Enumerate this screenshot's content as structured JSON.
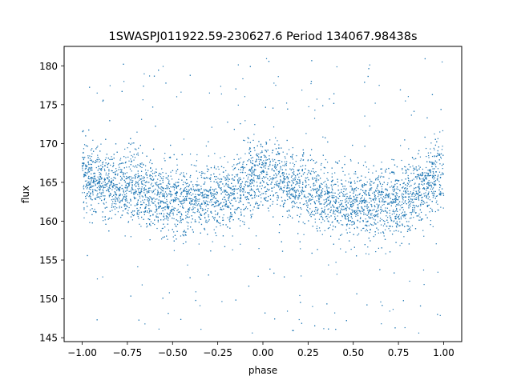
{
  "chart_data": {
    "type": "scatter",
    "title": "1SWASPJ011922.59-230627.6 Period 134067.98438s",
    "xlabel": "phase",
    "ylabel": "flux",
    "xlim": [
      -1.1,
      1.1
    ],
    "ylim": [
      144.5,
      182.5
    ],
    "x_ticks": [
      -1.0,
      -0.75,
      -0.5,
      -0.25,
      0.0,
      0.25,
      0.5,
      0.75,
      1.0
    ],
    "x_tick_labels": [
      "−1.00",
      "−0.75",
      "−0.50",
      "−0.25",
      "0.00",
      "0.25",
      "0.50",
      "0.75",
      "1.00"
    ],
    "y_ticks": [
      145,
      150,
      155,
      160,
      165,
      170,
      175,
      180
    ],
    "y_tick_labels": [
      "145",
      "150",
      "155",
      "160",
      "165",
      "170",
      "175",
      "180"
    ],
    "grid": false,
    "point_color": "#1f77b4",
    "series": [
      {
        "phase_range": [
          -1.0,
          1.0
        ],
        "trend_phase": [
          -1.0,
          -0.75,
          -0.5,
          -0.25,
          0.0,
          0.25,
          0.5,
          0.75,
          1.0
        ],
        "trend_flux": [
          165.5,
          164.5,
          162.5,
          163.0,
          166.0,
          164.0,
          162.0,
          162.5,
          165.5
        ],
        "core_scatter_sd": 2.2,
        "outlier_flux_range": [
          145.5,
          181
        ]
      }
    ]
  }
}
